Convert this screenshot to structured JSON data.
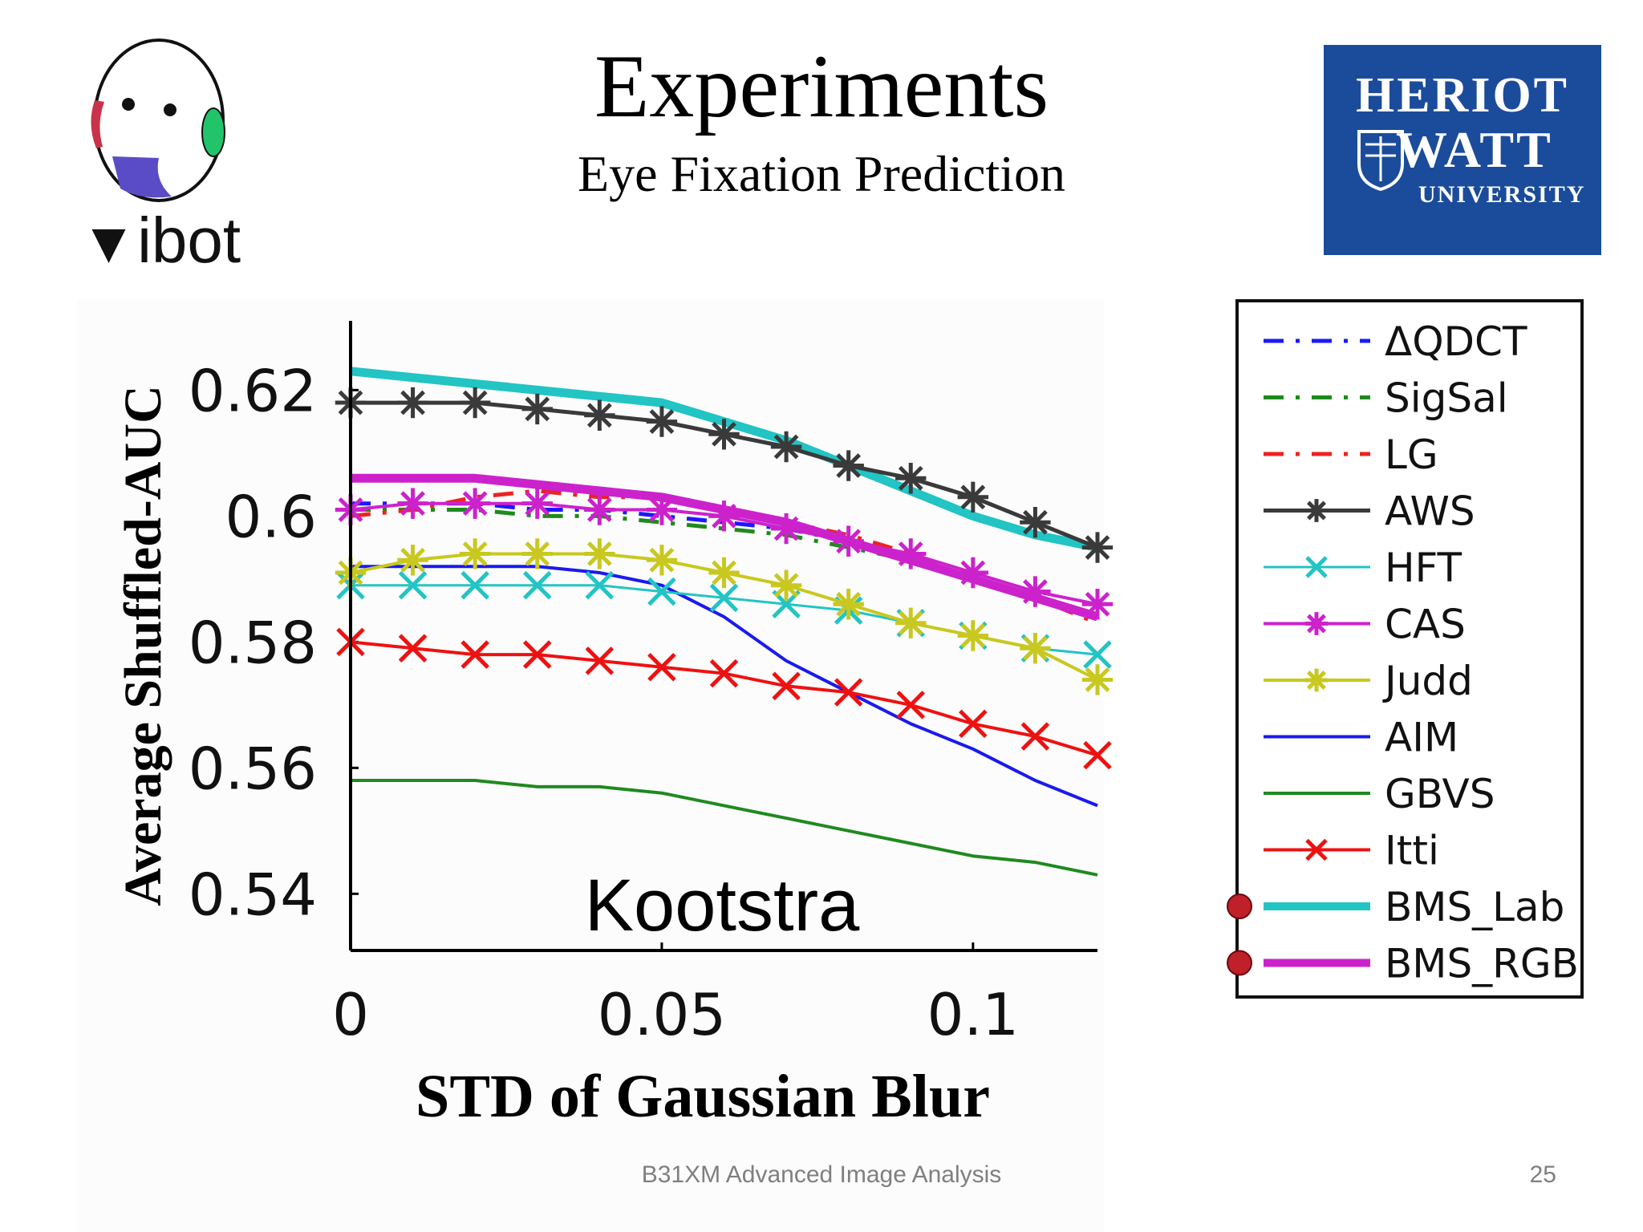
{
  "slide": {
    "title": "Experiments",
    "subtitle": "Eye Fixation Prediction",
    "footer": "B31XM Advanced Image Analysis",
    "page_number": "25"
  },
  "logos": {
    "left_text": "ibot",
    "right_lines": [
      "HERIOT",
      "WATT",
      "UNIVERSITY"
    ],
    "right_color": "#1b4c9b"
  },
  "chart_data": {
    "type": "line",
    "title": "Kootstra",
    "xlabel": "STD of Gaussian Blur",
    "ylabel": "Average Shuffled-AUC",
    "xlim": [
      0,
      0.12
    ],
    "ylim": [
      0.531,
      0.631
    ],
    "x_ticks": [
      0,
      0.05,
      0.1
    ],
    "x_tick_labels": [
      "0",
      "0.05",
      "0.1"
    ],
    "y_ticks": [
      0.54,
      0.56,
      0.58,
      0.6,
      0.62
    ],
    "y_tick_labels": [
      "0.54",
      "0.56",
      "0.58",
      "0.6",
      "0.62"
    ],
    "legend_position": "right",
    "x": [
      0,
      0.01,
      0.02,
      0.03,
      0.04,
      0.05,
      0.06,
      0.07,
      0.08,
      0.09,
      0.1,
      0.11,
      0.12
    ],
    "series": [
      {
        "name": "ΔQDCT",
        "color": "#1a1aff",
        "style": "dashdot",
        "width": 5,
        "marker": "none",
        "values": [
          0.602,
          0.602,
          0.602,
          0.601,
          0.601,
          0.6,
          0.599,
          0.598,
          0.596,
          0.593,
          0.59,
          0.587,
          0.584
        ]
      },
      {
        "name": "SigSal",
        "color": "#1f8a1f",
        "style": "dashdot",
        "width": 5,
        "marker": "none",
        "values": [
          0.601,
          0.601,
          0.601,
          0.6,
          0.6,
          0.599,
          0.598,
          0.597,
          0.595,
          0.593,
          0.59,
          0.587,
          0.584
        ]
      },
      {
        "name": "LG",
        "color": "#ee2222",
        "style": "dashdot",
        "width": 5,
        "marker": "none",
        "values": [
          0.6,
          0.601,
          0.603,
          0.604,
          0.603,
          0.603,
          0.601,
          0.599,
          0.597,
          0.594,
          0.59,
          0.587,
          0.583
        ]
      },
      {
        "name": "AWS",
        "color": "#3a3a3a",
        "style": "solid",
        "width": 5,
        "marker": "star",
        "values": [
          0.618,
          0.618,
          0.618,
          0.617,
          0.616,
          0.615,
          0.613,
          0.611,
          0.608,
          0.606,
          0.603,
          0.599,
          0.595
        ]
      },
      {
        "name": "HFT",
        "color": "#22c4c4",
        "style": "solid",
        "width": 3,
        "marker": "x",
        "values": [
          0.589,
          0.589,
          0.589,
          0.589,
          0.589,
          0.588,
          0.587,
          0.586,
          0.585,
          0.583,
          0.581,
          0.579,
          0.578
        ]
      },
      {
        "name": "CAS",
        "color": "#cc22cc",
        "style": "solid",
        "width": 4,
        "marker": "star",
        "values": [
          0.601,
          0.602,
          0.602,
          0.602,
          0.601,
          0.601,
          0.6,
          0.598,
          0.596,
          0.594,
          0.591,
          0.588,
          0.586
        ]
      },
      {
        "name": "Judd",
        "color": "#c8c820",
        "style": "solid",
        "width": 4,
        "marker": "star",
        "values": [
          0.591,
          0.593,
          0.594,
          0.594,
          0.594,
          0.593,
          0.591,
          0.589,
          0.586,
          0.583,
          0.581,
          0.579,
          0.574
        ]
      },
      {
        "name": "AIM",
        "color": "#1a1aee",
        "style": "solid",
        "width": 4,
        "marker": "none",
        "values": [
          0.592,
          0.592,
          0.592,
          0.592,
          0.591,
          0.589,
          0.584,
          0.577,
          0.572,
          0.567,
          0.563,
          0.558,
          0.554
        ]
      },
      {
        "name": "GBVS",
        "color": "#1f8a1f",
        "style": "solid",
        "width": 4,
        "marker": "none",
        "values": [
          0.558,
          0.558,
          0.558,
          0.557,
          0.557,
          0.556,
          0.554,
          0.552,
          0.55,
          0.548,
          0.546,
          0.545,
          0.543
        ]
      },
      {
        "name": "Itti",
        "color": "#ee1111",
        "style": "solid",
        "width": 4,
        "marker": "x",
        "values": [
          0.58,
          0.579,
          0.578,
          0.578,
          0.577,
          0.576,
          0.575,
          0.573,
          0.572,
          0.57,
          0.567,
          0.565,
          0.562
        ]
      },
      {
        "name": "BMS_Lab",
        "color": "#22c4c4",
        "style": "solid",
        "width": 11,
        "marker": "none",
        "values": [
          0.623,
          0.622,
          0.621,
          0.62,
          0.619,
          0.618,
          0.615,
          0.612,
          0.608,
          0.604,
          0.6,
          0.597,
          0.595
        ]
      },
      {
        "name": "BMS_RGB",
        "color": "#cc22cc",
        "style": "solid",
        "width": 11,
        "marker": "none",
        "values": [
          0.606,
          0.606,
          0.606,
          0.605,
          0.604,
          0.603,
          0.601,
          0.599,
          0.596,
          0.593,
          0.59,
          0.587,
          0.584
        ]
      }
    ],
    "highlighted_series": [
      "BMS_Lab",
      "BMS_RGB"
    ]
  }
}
